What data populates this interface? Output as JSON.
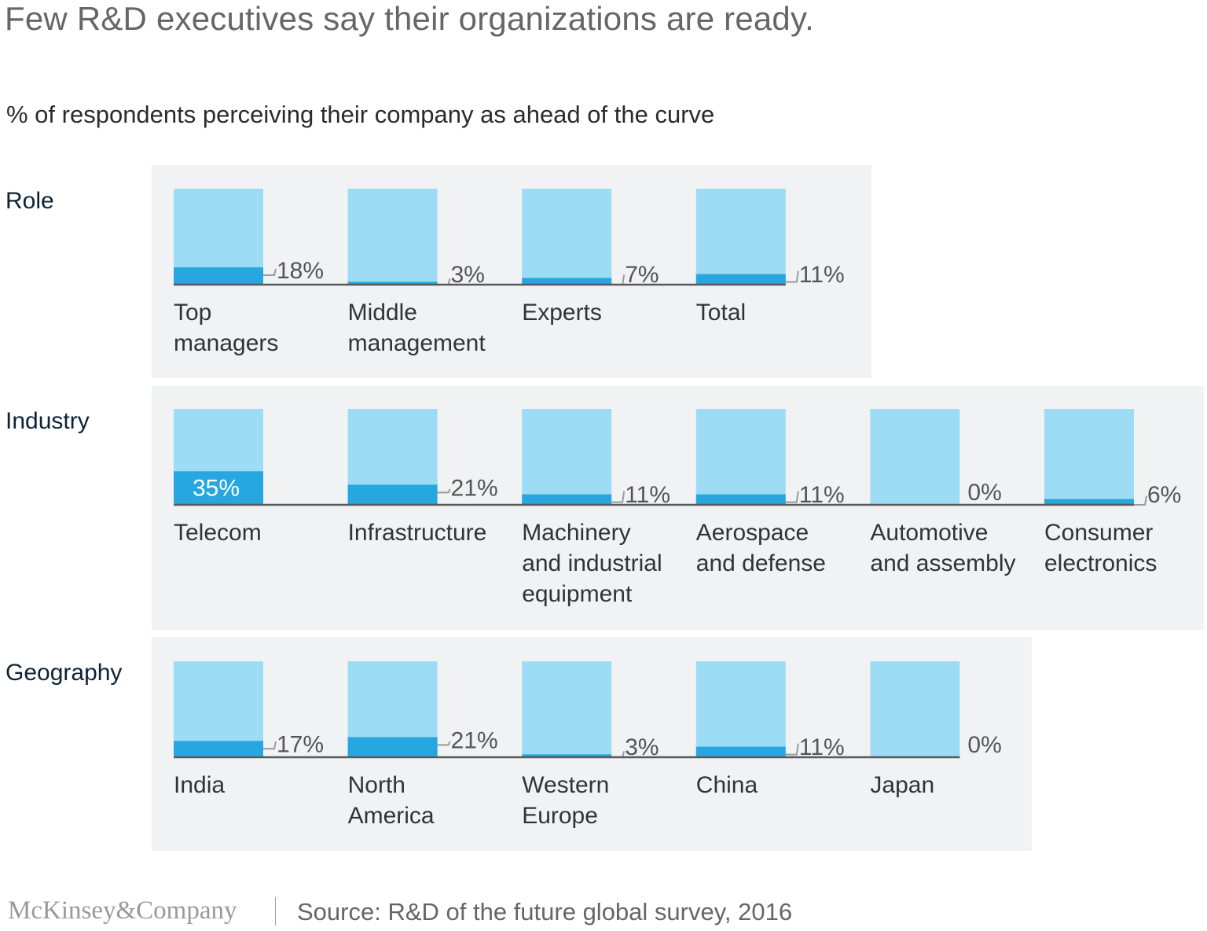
{
  "header": {
    "title": "Few R&D executives say their organizations are ready.",
    "subtitle": "% of respondents perceiving their company as ahead of the curve"
  },
  "footer": {
    "logo": "McKinsey&Company",
    "source": "Source: R&D of the future global survey, 2016"
  },
  "colors": {
    "panel_bg": "#f1f2f4",
    "bar_track": "#9ddcf5",
    "bar_fill": "#27a7e0",
    "baseline": "#58595b",
    "leader": "#9a9a9a"
  },
  "chart_data": {
    "type": "bar",
    "ylim": [
      0,
      100
    ],
    "groups": [
      {
        "name": "Role",
        "categories": [
          "Top managers",
          "Middle management",
          "Experts",
          "Total"
        ],
        "values": [
          18,
          3,
          7,
          11
        ],
        "value_labels": [
          "18%",
          "3%",
          "7%",
          "11%"
        ]
      },
      {
        "name": "Industry",
        "categories": [
          "Telecom",
          "Infrastructure",
          "Machinery and industrial equipment",
          "Aerospace and defense",
          "Automotive and assembly",
          "Consumer electronics"
        ],
        "values": [
          35,
          21,
          11,
          11,
          0,
          6
        ],
        "value_labels": [
          "35%",
          "21%",
          "11%",
          "11%",
          "0%",
          "6%"
        ]
      },
      {
        "name": "Geography",
        "categories": [
          "India",
          "North America",
          "Western Europe",
          "China",
          "Japan"
        ],
        "values": [
          17,
          21,
          3,
          11,
          0
        ],
        "value_labels": [
          "17%",
          "21%",
          "3%",
          "11%",
          "0%"
        ]
      }
    ]
  }
}
